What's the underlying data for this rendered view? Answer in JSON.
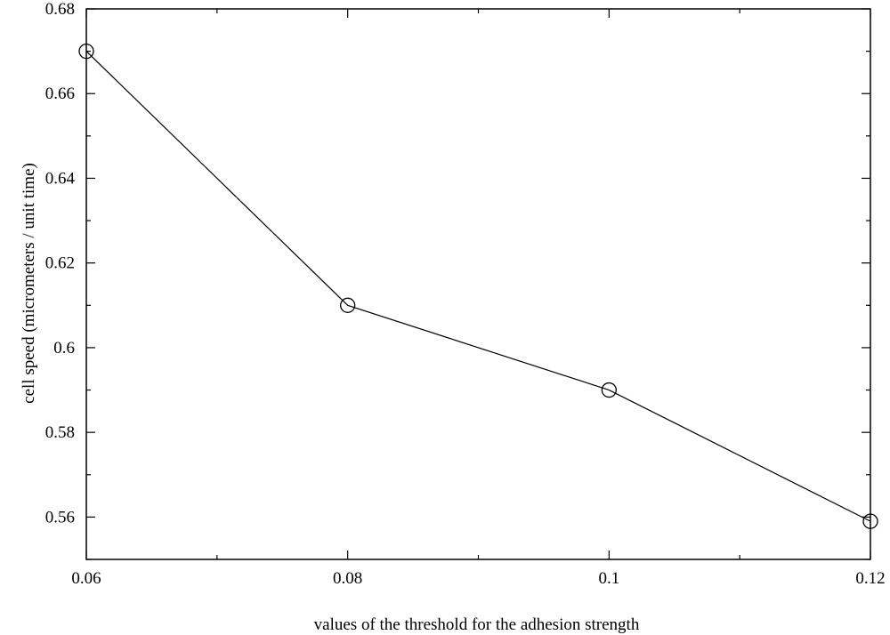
{
  "chart_data": {
    "type": "line",
    "title": "",
    "xlabel": "values of the threshold for the adhesion strength",
    "ylabel": "cell speed (micrometers / unit time)",
    "xlim": [
      0.06,
      0.12
    ],
    "ylim": [
      0.55,
      0.68
    ],
    "x_ticks": [
      0.06,
      0.08,
      0.1,
      0.12
    ],
    "x_tick_labels": [
      "0.06",
      "0.08",
      "0.1",
      "0.12"
    ],
    "y_ticks": [
      0.56,
      0.58,
      0.6,
      0.62,
      0.64,
      0.66,
      0.68
    ],
    "y_tick_labels": [
      "0.56",
      "0.58",
      "0.6",
      "0.62",
      "0.64",
      "0.66",
      "0.68"
    ],
    "grid": false,
    "marker": "open-circle",
    "line_color": "#000000",
    "series": [
      {
        "x": [
          0.06,
          0.08,
          0.1,
          0.12
        ],
        "y": [
          0.67,
          0.61,
          0.59,
          0.559
        ]
      }
    ]
  }
}
